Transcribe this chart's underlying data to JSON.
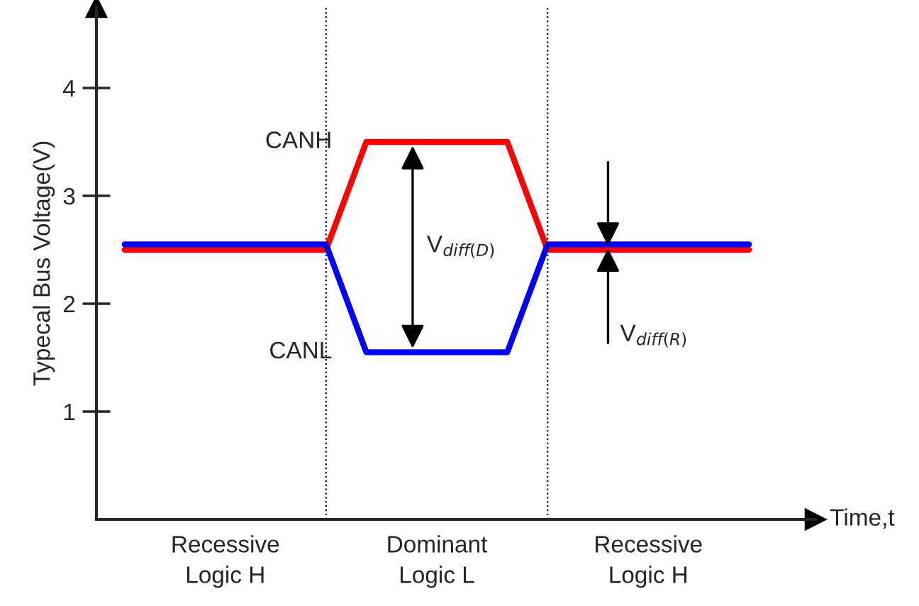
{
  "chart_data": {
    "type": "line",
    "xlabel": "Time,t",
    "ylabel": "Typecal Bus Voltage(V)",
    "categories": [
      null,
      null,
      null,
      null,
      null,
      null,
      null,
      null,
      null,
      null,
      null,
      null,
      null,
      null,
      null,
      null,
      null,
      null,
      null,
      null,
      null,
      null,
      null,
      null,
      null,
      null,
      null,
      null,
      null,
      null,
      null,
      null
    ],
    "ylim": [
      0,
      4.75
    ],
    "yticks": [
      1,
      2,
      3,
      4
    ],
    "grid": false,
    "legend": false,
    "marker": "none",
    "line_style": "solid",
    "series": [
      {
        "name": "CANH",
        "color": "#ff0000",
        "values": [
          2.5,
          2.5,
          2.5,
          2.5,
          2.5,
          2.5,
          2.5,
          2.5,
          2.5,
          2.5,
          2.5,
          3.0,
          3.5,
          3.5,
          3.5,
          3.5,
          3.5,
          3.5,
          3.5,
          3.5,
          3.0,
          2.5,
          2.5,
          2.5,
          2.5,
          2.5,
          2.5,
          2.5,
          2.5,
          2.5,
          2.5,
          2.5
        ]
      },
      {
        "name": "CANL",
        "color": "#0000ff",
        "values": [
          2.55,
          2.55,
          2.55,
          2.55,
          2.55,
          2.55,
          2.55,
          2.55,
          2.55,
          2.55,
          2.55,
          2.05,
          1.55,
          1.55,
          1.55,
          1.55,
          1.55,
          1.55,
          1.55,
          1.55,
          2.05,
          2.55,
          2.55,
          2.55,
          2.55,
          2.55,
          2.55,
          2.55,
          2.55,
          2.55,
          2.55,
          2.55
        ]
      }
    ],
    "annotations": [
      "V$_{diff(D)}$",
      "V$_{diff(R)}$",
      "Recessive\nLogic H",
      "Dominant\nLogic L",
      "Recessive\nLogic H"
    ]
  }
}
